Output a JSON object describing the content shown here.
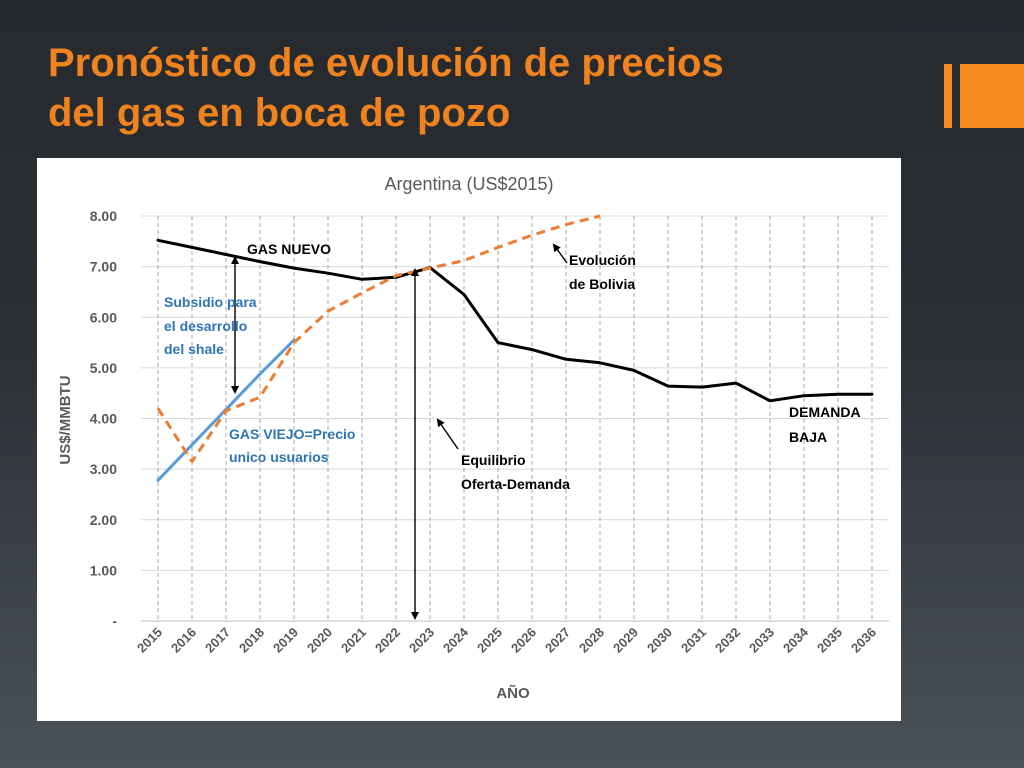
{
  "slide": {
    "title_line1": "Pronóstico de evolución de precios",
    "title_line2": "del gas en boca de pozo",
    "accent_color": "#f58a1f"
  },
  "chart_data": {
    "type": "line",
    "title": "Argentina  (US$2015)",
    "xlabel": "AÑO",
    "ylabel": "US$/MMBTU",
    "ylim": [
      0,
      8
    ],
    "y_ticks": [
      "-",
      "1.00",
      "2.00",
      "3.00",
      "4.00",
      "5.00",
      "6.00",
      "7.00",
      "8.00"
    ],
    "grid": "horizontal solid, vertical dashed",
    "categories": [
      "2015",
      "2016",
      "2017",
      "2018",
      "2019",
      "2020",
      "2021",
      "2022",
      "2023",
      "2024",
      "2025",
      "2026",
      "2027",
      "2028",
      "2029",
      "2030",
      "2031",
      "2032",
      "2033",
      "2034",
      "2035",
      "2036"
    ],
    "series": [
      {
        "name": "GAS NUEVO",
        "color": "#000000",
        "style": "solid",
        "values": [
          7.52,
          7.38,
          7.24,
          7.1,
          6.97,
          6.87,
          6.75,
          6.79,
          6.98,
          6.45,
          5.5,
          5.36,
          5.17,
          5.1,
          4.95,
          4.64,
          4.62,
          4.7,
          4.35,
          4.45,
          4.48,
          4.48
        ]
      },
      {
        "name": "GAS VIEJO=Precio unico usuarios",
        "color": "#5b9bd5",
        "style": "solid",
        "values": [
          2.78,
          3.48,
          4.18,
          4.88,
          5.55,
          null,
          null,
          null,
          null,
          null,
          null,
          null,
          null,
          null,
          null,
          null,
          null,
          null,
          null,
          null,
          null,
          null
        ]
      },
      {
        "name": "Evolución de Bolivia",
        "color": "#ed7d31",
        "style": "dashed",
        "values": [
          4.2,
          3.15,
          4.15,
          4.42,
          5.5,
          6.12,
          6.48,
          6.82,
          6.97,
          7.12,
          7.38,
          7.62,
          7.83,
          8.0,
          null,
          null,
          null,
          null,
          null,
          null,
          null,
          null
        ]
      }
    ],
    "annotations": {
      "gas_nuevo": "GAS NUEVO",
      "subsidio_l1": "Subsidio para",
      "subsidio_l2": "el desarrollo",
      "subsidio_l3": "del shale",
      "gas_viejo_l1": "GAS VIEJO=Precio",
      "gas_viejo_l2": "unico usuarios",
      "bolivia_l1": "Evolución",
      "bolivia_l2": "de Bolivia",
      "equilibrio_l1": "Equilibrio",
      "equilibrio_l2": "Oferta-Demanda",
      "demanda_l1": "DEMANDA",
      "demanda_l2": "BAJA"
    },
    "annotation_colors": {
      "black": "#000000",
      "blue": "#2e75b6"
    }
  }
}
